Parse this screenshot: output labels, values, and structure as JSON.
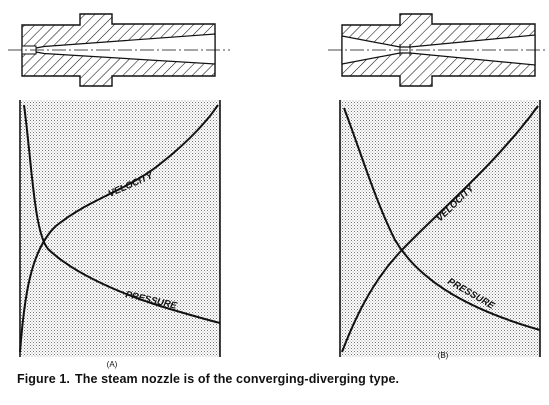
{
  "figure": {
    "label": "Figure 1.",
    "caption": "The steam nozzle is of the converging-diverging type."
  },
  "panels": [
    {
      "id": "A",
      "tag": "(A)",
      "curve_labels": {
        "velocity": "VELOCITY",
        "pressure": "PRESSURE"
      }
    },
    {
      "id": "B",
      "tag": "(B)",
      "curve_labels": {
        "velocity": "VELOCITY",
        "pressure": "PRESSURE"
      }
    }
  ],
  "colors": {
    "ink": "#111111",
    "stipple": "#7a7a7a",
    "background": "#ffffff"
  }
}
